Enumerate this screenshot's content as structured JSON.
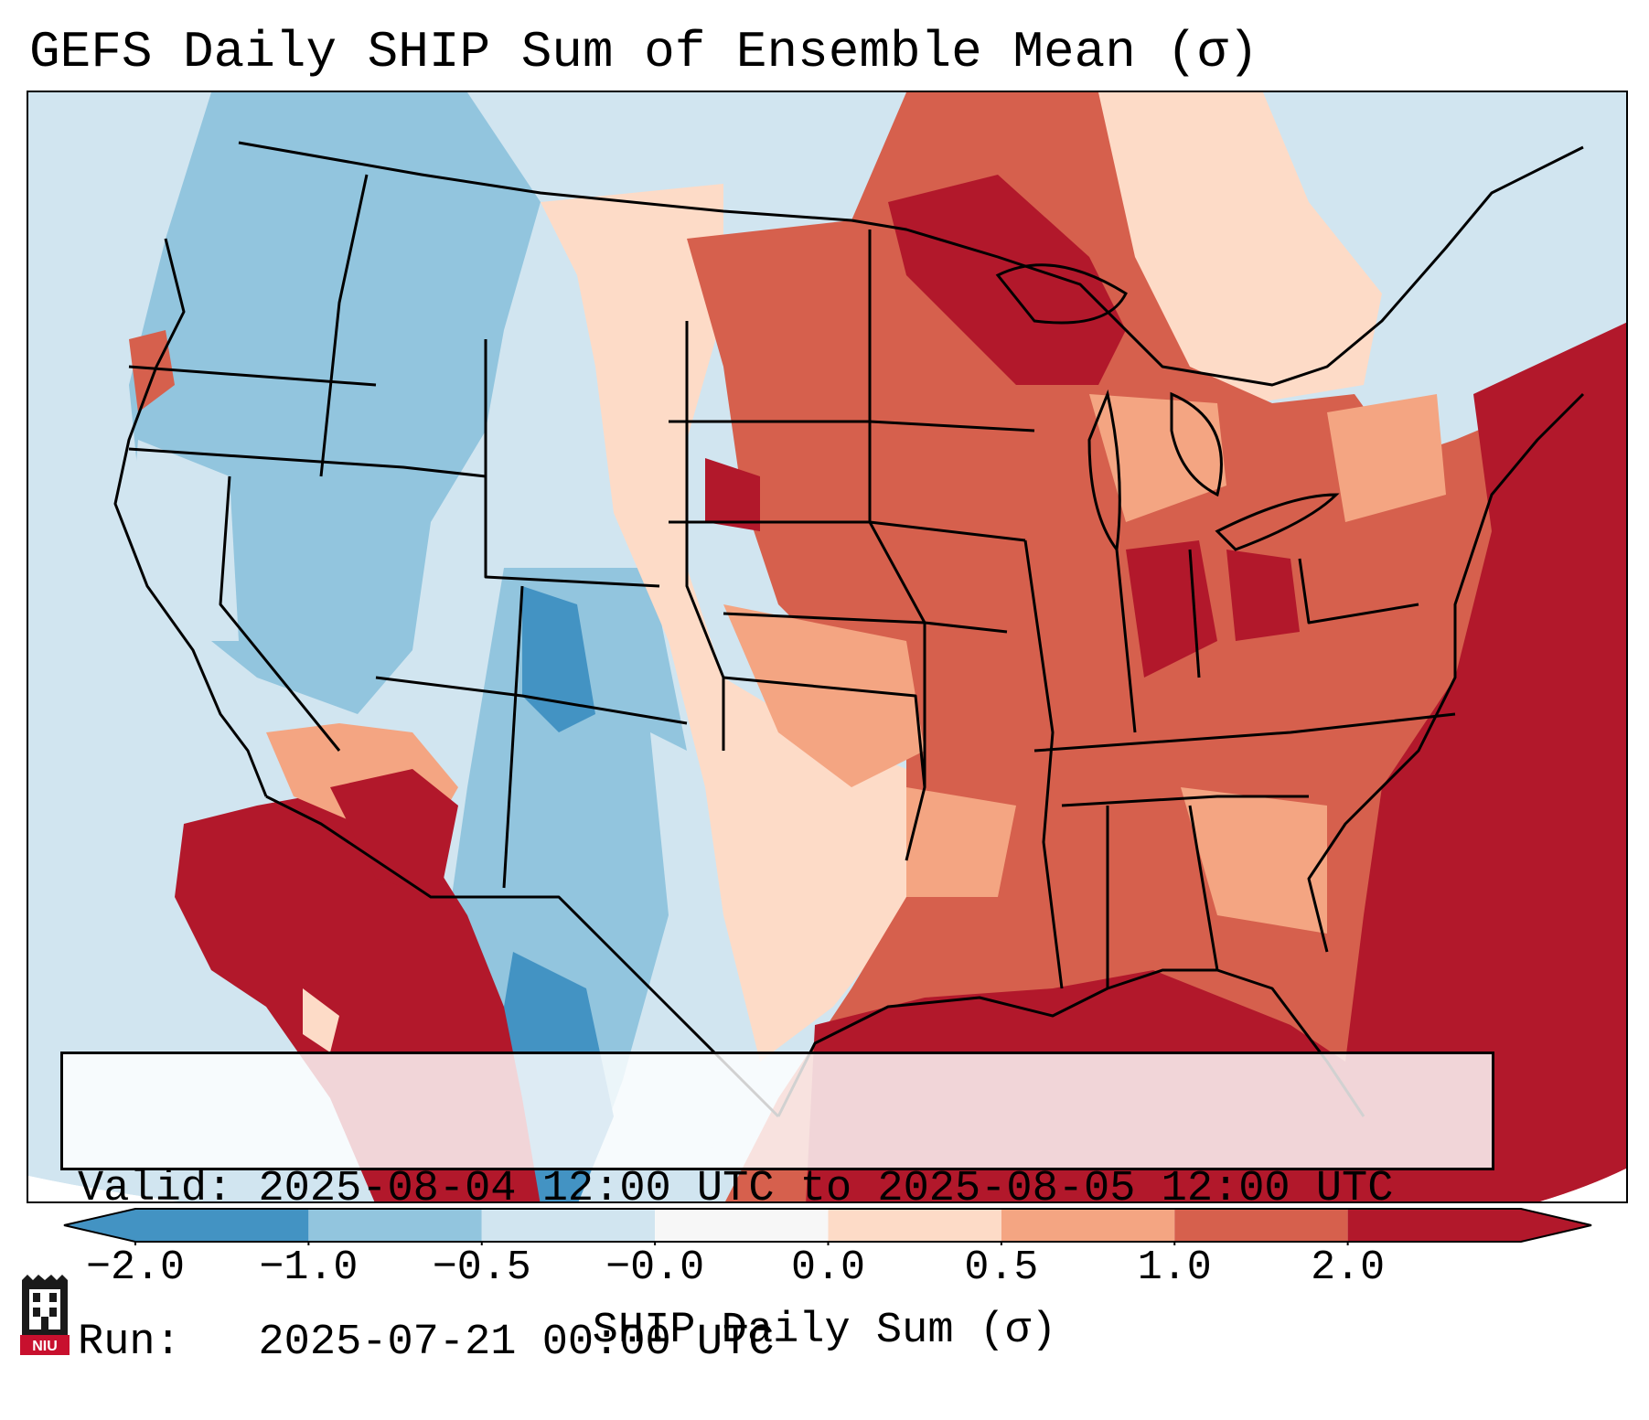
{
  "title": "GEFS Daily SHIP Sum of Ensemble Mean (σ)",
  "info": {
    "valid_label": "Valid:",
    "valid_value": "2025-08-04 12:00 UTC to 2025-08-05 12:00 UTC",
    "run_label": "Run:",
    "run_value": "2025-07-21 00:00 UTC"
  },
  "colorbar": {
    "title": "SHIP Daily Sum (σ)",
    "tick_labels": [
      "−2.0",
      "−1.0",
      "−0.5",
      "−0.0",
      "0.0",
      "0.5",
      "1.0",
      "2.0"
    ],
    "colors": [
      "#4393c3",
      "#92c5de",
      "#d1e5f0",
      "#f7f7f7",
      "#fddbc7",
      "#f4a582",
      "#d6604d",
      "#b2182b"
    ]
  },
  "logo": {
    "text": "NIU",
    "icon": "niu-logo-icon"
  }
}
